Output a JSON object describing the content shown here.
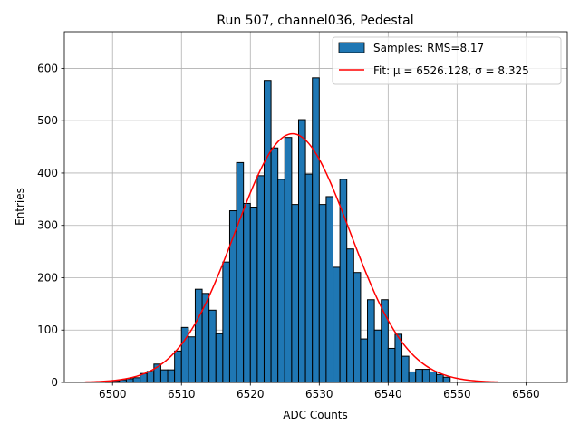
{
  "chart_data": {
    "type": "bar",
    "title": "Run 507, channel036, Pedestal",
    "xlabel": "ADC Counts",
    "ylabel": "Entries",
    "xlim": [
      6493,
      6566
    ],
    "ylim": [
      0,
      670
    ],
    "xticks": [
      6500,
      6510,
      6520,
      6530,
      6540,
      6550,
      6560
    ],
    "yticks": [
      0,
      100,
      200,
      300,
      400,
      500,
      600
    ],
    "grid": true,
    "legend_position": "top-right",
    "bar_color": "#1f77b4",
    "bar_edge_color": "#000000",
    "fit_color": "#ff0000",
    "series": [
      {
        "name": "Samples: RMS=8.17",
        "kind": "histogram",
        "bin_width": 1,
        "bin_start": 6499,
        "values": [
          1,
          3,
          5,
          7,
          9,
          17,
          21,
          35,
          24,
          24,
          60,
          105,
          87,
          178,
          170,
          138,
          93,
          230,
          328,
          420,
          342,
          335,
          395,
          577,
          448,
          388,
          468,
          340,
          502,
          398,
          582,
          340,
          355,
          220,
          388,
          255,
          210,
          83,
          158,
          100,
          158,
          65,
          92,
          50,
          20,
          25,
          25,
          20,
          15,
          10
        ]
      },
      {
        "name": "Fit: μ = 6526.128, σ = 8.325",
        "kind": "gaussian_fit",
        "mu": 6526.128,
        "sigma": 8.325,
        "peak": 475,
        "x_range": [
          6496,
          6556
        ]
      }
    ]
  }
}
